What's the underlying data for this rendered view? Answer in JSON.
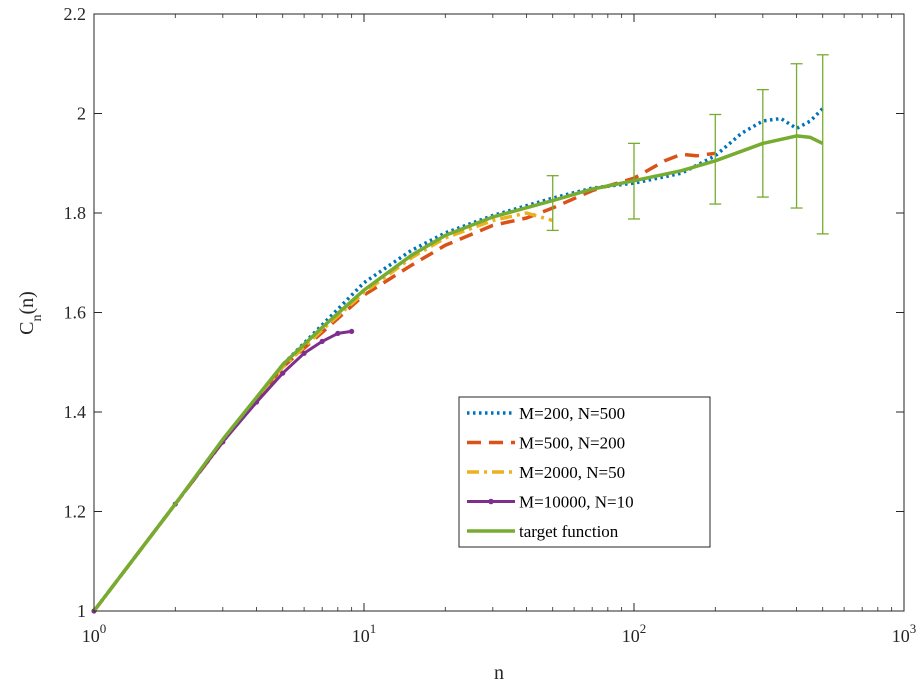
{
  "chart_data": {
    "type": "line",
    "xlabel": "n",
    "ylabel": {
      "main": "C",
      "sub": "n",
      "suffix": "(n)"
    },
    "xscale": "log",
    "xlim": [
      1,
      1000
    ],
    "ylim": [
      1,
      2.2
    ],
    "grid": false,
    "legend_position": "lower-right",
    "x_ticks": [
      {
        "value": 1,
        "base": "10",
        "exp": "0"
      },
      {
        "value": 10,
        "base": "10",
        "exp": "1"
      },
      {
        "value": 100,
        "base": "10",
        "exp": "2"
      },
      {
        "value": 1000,
        "base": "10",
        "exp": "3"
      }
    ],
    "y_ticks": [
      {
        "value": 1,
        "label": "1"
      },
      {
        "value": 1.2,
        "label": "1.2"
      },
      {
        "value": 1.4,
        "label": "1.4"
      },
      {
        "value": 1.6,
        "label": "1.6"
      },
      {
        "value": 1.8,
        "label": "1.8"
      },
      {
        "value": 2,
        "label": "2"
      },
      {
        "value": 2.2,
        "label": "2.2"
      }
    ],
    "series": [
      {
        "name": "M=200, N=500",
        "color": "#0072BD",
        "style": "dotted",
        "x": [
          1,
          2,
          3,
          5,
          7,
          10,
          15,
          20,
          30,
          50,
          70,
          100,
          150,
          200,
          250,
          300,
          350,
          400,
          450,
          500
        ],
        "y": [
          1,
          1.215,
          1.34,
          1.495,
          1.575,
          1.66,
          1.725,
          1.76,
          1.795,
          1.83,
          1.85,
          1.86,
          1.88,
          1.915,
          1.96,
          1.985,
          1.99,
          1.97,
          1.985,
          2.01
        ]
      },
      {
        "name": "M=500, N=200",
        "color": "#D95319",
        "style": "dashed",
        "x": [
          1,
          2,
          3,
          5,
          7,
          10,
          15,
          20,
          30,
          40,
          50,
          70,
          100,
          130,
          150,
          170,
          200
        ],
        "y": [
          1,
          1.215,
          1.34,
          1.49,
          1.56,
          1.635,
          1.695,
          1.735,
          1.775,
          1.79,
          1.81,
          1.845,
          1.87,
          1.905,
          1.918,
          1.915,
          1.92
        ]
      },
      {
        "name": "M=2000, N=50",
        "color": "#EDB120",
        "style": "dashdot",
        "x": [
          1,
          2,
          3,
          5,
          7,
          10,
          15,
          20,
          30,
          40,
          50
        ],
        "y": [
          1,
          1.215,
          1.34,
          1.49,
          1.565,
          1.64,
          1.71,
          1.75,
          1.785,
          1.8,
          1.785
        ]
      },
      {
        "name": "M=10000, N=10",
        "color": "#7E2F8E",
        "style": "solid-marker",
        "x": [
          1,
          2,
          3,
          4,
          5,
          6,
          7,
          8,
          9
        ],
        "y": [
          1,
          1.215,
          1.34,
          1.42,
          1.478,
          1.518,
          1.542,
          1.558,
          1.562
        ]
      },
      {
        "name": "target function",
        "color": "#77AC30",
        "style": "solid",
        "x": [
          1,
          2,
          3,
          5,
          7,
          10,
          15,
          20,
          30,
          50,
          70,
          100,
          150,
          200,
          300,
          400,
          450,
          500
        ],
        "y": [
          1,
          1.215,
          1.345,
          1.495,
          1.57,
          1.645,
          1.715,
          1.755,
          1.792,
          1.825,
          1.848,
          1.865,
          1.885,
          1.905,
          1.94,
          1.955,
          1.952,
          1.94
        ]
      }
    ],
    "error_bars": {
      "series": "target function",
      "color": "#77AC30",
      "points": [
        {
          "x": 50,
          "low": 1.765,
          "high": 1.875
        },
        {
          "x": 100,
          "low": 1.788,
          "high": 1.94
        },
        {
          "x": 200,
          "low": 1.818,
          "high": 1.998
        },
        {
          "x": 300,
          "low": 1.832,
          "high": 2.048
        },
        {
          "x": 400,
          "low": 1.81,
          "high": 2.1
        },
        {
          "x": 500,
          "low": 1.758,
          "high": 2.118
        }
      ]
    }
  }
}
